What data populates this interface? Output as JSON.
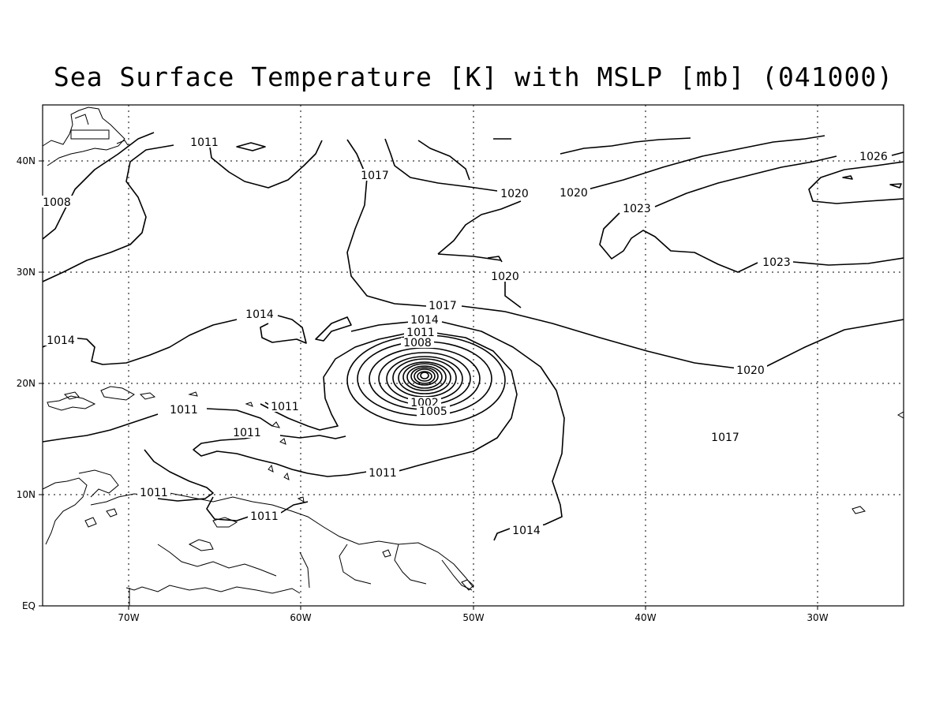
{
  "title": "Sea Surface Temperature [K] with MSLP [mb] (041000)",
  "axes": {
    "x_ticks": [
      "70W",
      "60W",
      "50W",
      "40W",
      "30W"
    ],
    "y_ticks": [
      "40N",
      "30N",
      "20N",
      "10N",
      "EQ"
    ],
    "lon_range": [
      -75,
      -25
    ],
    "lat_range": [
      0,
      45
    ]
  },
  "contour_labels": [
    {
      "text": "1011"
    },
    {
      "text": "1008"
    },
    {
      "text": "1017"
    },
    {
      "text": "1020"
    },
    {
      "text": "1020"
    },
    {
      "text": "1026"
    },
    {
      "text": "1023"
    },
    {
      "text": "1020"
    },
    {
      "text": "1023"
    },
    {
      "text": "1014"
    },
    {
      "text": "1017"
    },
    {
      "text": "1014"
    },
    {
      "text": "1014"
    },
    {
      "text": "1011"
    },
    {
      "text": "1008"
    },
    {
      "text": "1020"
    },
    {
      "text": "1011"
    },
    {
      "text": "1011"
    },
    {
      "text": "1002"
    },
    {
      "text": "1005"
    },
    {
      "text": "1011"
    },
    {
      "text": "1017"
    },
    {
      "text": "1011"
    },
    {
      "text": "1011"
    },
    {
      "text": "1011"
    },
    {
      "text": "1014"
    }
  ],
  "low_center": {
    "lon": -52.8,
    "lat": 20.5
  }
}
